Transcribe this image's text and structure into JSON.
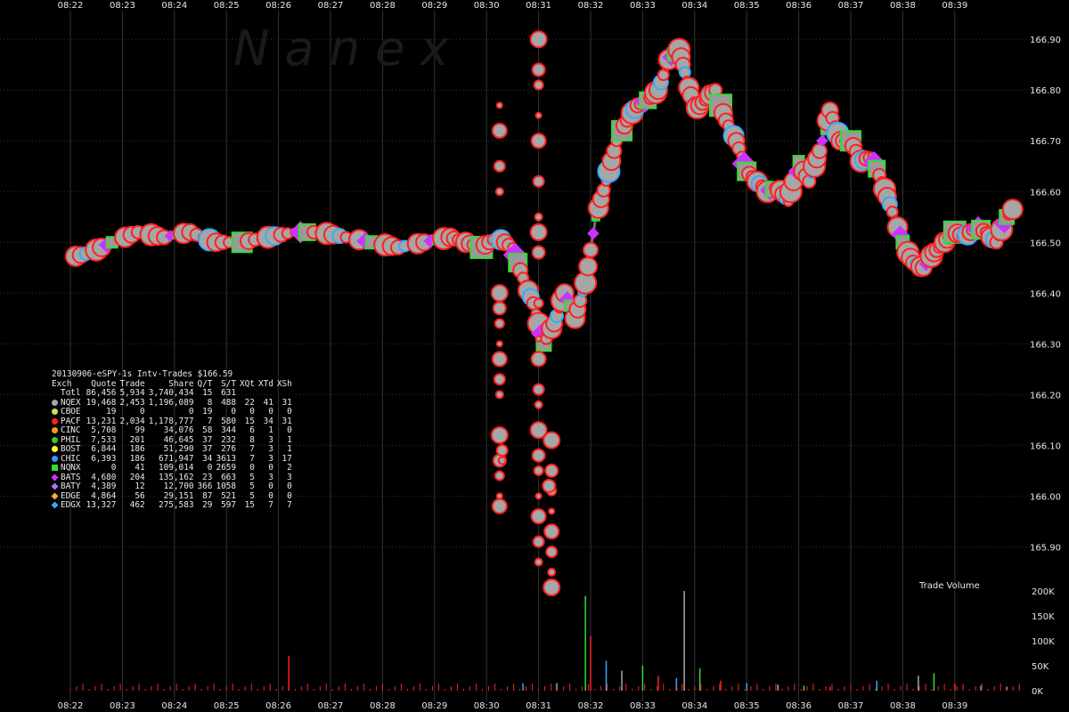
{
  "chart_data": {
    "type": "scatter",
    "watermark": "N a n e x",
    "x_ticks": [
      "08:22",
      "08:23",
      "08:24",
      "08:25",
      "08:26",
      "08:27",
      "08:28",
      "08:29",
      "08:30",
      "08:31",
      "08:32",
      "08:33",
      "08:34",
      "08:35",
      "08:36",
      "08:37",
      "08:38",
      "08:39"
    ],
    "y_ticks": [
      "166.90",
      "166.80",
      "166.70",
      "166.60",
      "166.50",
      "166.40",
      "166.30",
      "166.20",
      "166.10",
      "166.00",
      "165.90"
    ],
    "ylim": [
      165.82,
      166.96
    ],
    "xlim_minutes": [
      0,
      18.5
    ],
    "price_path": [
      [
        0.0,
        166.47
      ],
      [
        0.4,
        166.48
      ],
      [
        0.8,
        166.5
      ],
      [
        1.3,
        166.52
      ],
      [
        1.8,
        166.51
      ],
      [
        2.3,
        166.52
      ],
      [
        2.8,
        166.5
      ],
      [
        3.3,
        166.5
      ],
      [
        3.8,
        166.51
      ],
      [
        4.3,
        166.52
      ],
      [
        4.8,
        166.52
      ],
      [
        5.3,
        166.51
      ],
      [
        5.8,
        166.5
      ],
      [
        6.3,
        166.49
      ],
      [
        6.8,
        166.5
      ],
      [
        7.3,
        166.51
      ],
      [
        7.6,
        166.5
      ],
      [
        7.9,
        166.49
      ],
      [
        8.2,
        166.51
      ],
      [
        8.5,
        166.49
      ],
      [
        8.7,
        166.43
      ],
      [
        8.9,
        166.38
      ],
      [
        9.1,
        166.3
      ],
      [
        9.3,
        166.34
      ],
      [
        9.5,
        166.4
      ],
      [
        9.7,
        166.35
      ],
      [
        9.9,
        166.42
      ],
      [
        10.1,
        166.55
      ],
      [
        10.3,
        166.62
      ],
      [
        10.5,
        166.7
      ],
      [
        10.7,
        166.74
      ],
      [
        10.9,
        166.77
      ],
      [
        11.1,
        166.78
      ],
      [
        11.3,
        166.8
      ],
      [
        11.5,
        166.86
      ],
      [
        11.7,
        166.88
      ],
      [
        11.85,
        166.82
      ],
      [
        12.0,
        166.76
      ],
      [
        12.2,
        166.78
      ],
      [
        12.4,
        166.8
      ],
      [
        12.6,
        166.74
      ],
      [
        12.8,
        166.7
      ],
      [
        13.0,
        166.64
      ],
      [
        13.2,
        166.62
      ],
      [
        13.4,
        166.6
      ],
      [
        13.6,
        166.61
      ],
      [
        13.8,
        166.58
      ],
      [
        14.0,
        166.66
      ],
      [
        14.2,
        166.62
      ],
      [
        14.4,
        166.68
      ],
      [
        14.6,
        166.76
      ],
      [
        14.8,
        166.7
      ],
      [
        15.0,
        166.7
      ],
      [
        15.2,
        166.66
      ],
      [
        15.4,
        166.67
      ],
      [
        15.6,
        166.62
      ],
      [
        15.8,
        166.56
      ],
      [
        16.0,
        166.5
      ],
      [
        16.2,
        166.46
      ],
      [
        16.4,
        166.45
      ],
      [
        16.6,
        166.48
      ],
      [
        16.8,
        166.5
      ],
      [
        17.0,
        166.52
      ],
      [
        17.2,
        166.51
      ],
      [
        17.4,
        166.53
      ],
      [
        17.6,
        166.52
      ],
      [
        17.8,
        166.5
      ],
      [
        18.0,
        166.55
      ],
      [
        18.15,
        166.57
      ]
    ],
    "outlier_trades": [
      [
        8.25,
        166.77
      ],
      [
        8.25,
        166.72
      ],
      [
        8.25,
        166.65
      ],
      [
        8.25,
        166.6
      ],
      [
        8.25,
        166.4
      ],
      [
        8.25,
        166.37
      ],
      [
        8.25,
        166.34
      ],
      [
        8.25,
        166.3
      ],
      [
        8.25,
        166.27
      ],
      [
        8.25,
        166.23
      ],
      [
        8.25,
        166.2
      ],
      [
        8.25,
        166.12
      ],
      [
        8.25,
        166.07
      ],
      [
        8.25,
        166.04
      ],
      [
        8.25,
        166.0
      ],
      [
        8.25,
        165.98
      ],
      [
        8.3,
        166.09
      ],
      [
        8.3,
        166.07
      ],
      [
        9.0,
        166.9
      ],
      [
        9.0,
        166.84
      ],
      [
        9.0,
        166.81
      ],
      [
        9.0,
        166.75
      ],
      [
        9.0,
        166.7
      ],
      [
        9.0,
        166.62
      ],
      [
        9.0,
        166.55
      ],
      [
        9.0,
        166.52
      ],
      [
        9.0,
        166.48
      ],
      [
        9.0,
        166.38
      ],
      [
        9.0,
        166.31
      ],
      [
        9.0,
        166.27
      ],
      [
        9.0,
        166.21
      ],
      [
        9.0,
        166.18
      ],
      [
        9.0,
        166.13
      ],
      [
        9.0,
        166.08
      ],
      [
        9.0,
        166.05
      ],
      [
        9.0,
        166.0
      ],
      [
        9.0,
        165.96
      ],
      [
        9.0,
        165.91
      ],
      [
        9.0,
        165.87
      ],
      [
        9.25,
        166.11
      ],
      [
        9.25,
        166.05
      ],
      [
        9.25,
        166.01
      ],
      [
        9.25,
        165.97
      ],
      [
        9.25,
        165.93
      ],
      [
        9.25,
        165.89
      ],
      [
        9.25,
        165.85
      ],
      [
        9.25,
        165.82
      ],
      [
        9.2,
        166.02
      ]
    ],
    "legend": {
      "title": "20130906-eSPY-1s Intv-Trades $166.59",
      "columns": [
        "Exch",
        "Quote",
        "Trade",
        "Share",
        "Q/T",
        "S/T",
        "XQt",
        "XTd",
        "XSh"
      ],
      "rows": [
        {
          "exch": "Totl",
          "quote": "86,456",
          "trade": "5,934",
          "share": "3,740,434",
          "qt": "15",
          "st": "631",
          "xqt": "",
          "xtd": "",
          "xsh": "",
          "marker": "none",
          "color": "#000000"
        },
        {
          "exch": "NQEX",
          "quote": "19,468",
          "trade": "2,453",
          "share": "1,196,089",
          "qt": "8",
          "st": "488",
          "xqt": "22",
          "xtd": "41",
          "xsh": "31",
          "marker": "circle",
          "color": "#a6a6a6"
        },
        {
          "exch": "CBOE",
          "quote": "19",
          "trade": "0",
          "share": "0",
          "qt": "19",
          "st": "0",
          "xqt": "0",
          "xtd": "0",
          "xsh": "0",
          "marker": "circle",
          "color": "#c8e05a"
        },
        {
          "exch": "PACF",
          "quote": "13,231",
          "trade": "2,034",
          "share": "1,178,777",
          "qt": "7",
          "st": "580",
          "xqt": "15",
          "xtd": "34",
          "xsh": "31",
          "marker": "circle",
          "color": "#ff2020"
        },
        {
          "exch": "CINC",
          "quote": "5,708",
          "trade": "99",
          "share": "34,076",
          "qt": "58",
          "st": "344",
          "xqt": "6",
          "xtd": "1",
          "xsh": "0",
          "marker": "circle",
          "color": "#ff9a1a"
        },
        {
          "exch": "PHIL",
          "quote": "7,533",
          "trade": "201",
          "share": "46,645",
          "qt": "37",
          "st": "232",
          "xqt": "8",
          "xtd": "3",
          "xsh": "1",
          "marker": "circle",
          "color": "#33cc33"
        },
        {
          "exch": "BOST",
          "quote": "6,844",
          "trade": "186",
          "share": "51,290",
          "qt": "37",
          "st": "276",
          "xqt": "7",
          "xtd": "3",
          "xsh": "1",
          "marker": "circle",
          "color": "#ffff33"
        },
        {
          "exch": "CHIC",
          "quote": "6,393",
          "trade": "186",
          "share": "671,947",
          "qt": "34",
          "st": "3613",
          "xqt": "7",
          "xtd": "3",
          "xsh": "17",
          "marker": "circle",
          "color": "#3399ff"
        },
        {
          "exch": "NQNX",
          "quote": "0",
          "trade": "41",
          "share": "109,014",
          "qt": "0",
          "st": "2659",
          "xqt": "0",
          "xtd": "0",
          "xsh": "2",
          "marker": "square",
          "color": "#33dd33"
        },
        {
          "exch": "BATS",
          "quote": "4,680",
          "trade": "204",
          "share": "135,162",
          "qt": "23",
          "st": "663",
          "xqt": "5",
          "xtd": "3",
          "xsh": "3",
          "marker": "diamond",
          "color": "#cc33ff"
        },
        {
          "exch": "BATY",
          "quote": "4,389",
          "trade": "12",
          "share": "12,700",
          "qt": "366",
          "st": "1058",
          "xqt": "5",
          "xtd": "0",
          "xsh": "0",
          "marker": "diamond",
          "color": "#b070ff"
        },
        {
          "exch": "EDGE",
          "quote": "4,864",
          "trade": "56",
          "share": "29,151",
          "qt": "87",
          "st": "521",
          "xqt": "5",
          "xtd": "0",
          "xsh": "0",
          "marker": "diamond",
          "color": "#ffaa33"
        },
        {
          "exch": "EDGX",
          "quote": "13,327",
          "trade": "462",
          "share": "275,583",
          "qt": "29",
          "st": "597",
          "xqt": "15",
          "xtd": "7",
          "xsh": "7",
          "marker": "diamond",
          "color": "#33aaff"
        }
      ]
    },
    "volume": {
      "title": "Trade Volume",
      "y_ticks": [
        "200K",
        "150K",
        "100K",
        "50K",
        "0K"
      ],
      "ylim": [
        0,
        200000
      ],
      "spikes": [
        [
          4.2,
          70000
        ],
        [
          8.7,
          15000
        ],
        [
          9.35,
          15000
        ],
        [
          9.9,
          190000
        ],
        [
          10.0,
          110000
        ],
        [
          10.3,
          60000
        ],
        [
          10.6,
          40000
        ],
        [
          11.0,
          50000
        ],
        [
          11.3,
          30000
        ],
        [
          11.65,
          25000
        ],
        [
          11.8,
          200000
        ],
        [
          12.1,
          45000
        ],
        [
          12.5,
          20000
        ],
        [
          13.0,
          15000
        ],
        [
          13.6,
          12000
        ],
        [
          14.1,
          10000
        ],
        [
          14.6,
          8000
        ],
        [
          15.5,
          20000
        ],
        [
          16.3,
          30000
        ],
        [
          16.6,
          35000
        ],
        [
          17.0,
          15000
        ],
        [
          17.5,
          10000
        ],
        [
          18.0,
          8000
        ]
      ]
    },
    "colors": {
      "grid": "#333333",
      "background": "#000000",
      "path": "#707070",
      "nqex": "#a6a6a6",
      "pacf": "#ff2020",
      "edgx": "#33aaff",
      "nqnx": "#33dd33",
      "bats": "#cc33ff"
    }
  }
}
